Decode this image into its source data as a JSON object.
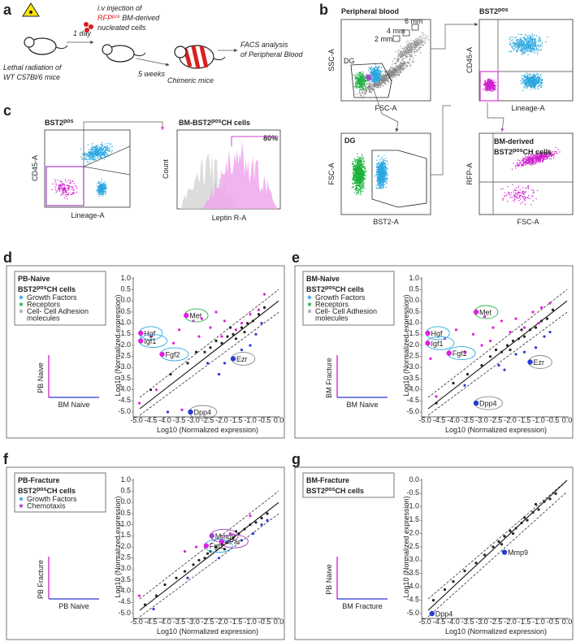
{
  "panels": {
    "a": {
      "letter": "a",
      "radiation_lines": [
        "Lethal radiation of",
        "WT C57Bl/6 mice"
      ],
      "step1": "1 day",
      "injection_line1": "i.v injection of",
      "injection_line2": {
        "pre": "RFP",
        "sup": "pos",
        "post": " BM-derived"
      },
      "injection_line3": "nucleated cells",
      "step2": "5 weeks",
      "chimeric": "Chimeric mice",
      "facs_lines": [
        "FACS analysis",
        "of Peripheral Blood"
      ]
    },
    "b": {
      "letter": "b",
      "pb_title": "Peripheral blood",
      "pb_y": "SSC-A",
      "pb_x": "FSC-A",
      "sizes": [
        "2 mm",
        "4 mm",
        "6 mm"
      ],
      "gate": "DG",
      "bst_title": {
        "pre": "BST2",
        "sup": "pos",
        "post": ""
      },
      "bst_y": "CD45-A",
      "bst_x": "Lineage-A",
      "dg_title": "DG",
      "dg_y": "FSC-A",
      "dg_x": "BST2-A",
      "bm_title1": "BM-derived",
      "bm_title2": {
        "pre": "BST2",
        "sup": "pos",
        "post": "CH cells"
      },
      "bm_y": "RFP-A",
      "bm_x": "FSC-A"
    },
    "c": {
      "letter": "c",
      "bst_title": {
        "pre": "BST2",
        "sup": "pos",
        "post": ""
      },
      "bst_y": "CD45-A",
      "bst_x": "Lineage-A",
      "hist_title": {
        "pre": "BM-BST2",
        "sup": "pos",
        "post": "CH cells"
      },
      "hist_y": "Count",
      "hist_x": "Leptin R-A",
      "percent": "80%"
    },
    "d": {
      "letter": "d",
      "legend": {
        "title": "PB-Naive",
        "subtitle": {
          "pre": "BST2",
          "sup": "pos",
          "post": "CH cells"
        },
        "items": [
          {
            "lines": [
              "Growth Factors"
            ],
            "color": "#29a9e1"
          },
          {
            "lines": [
              "Receptors"
            ],
            "color": "#2db34a"
          },
          {
            "lines": [
              "Cell- Cell Adhesion",
              "molecules"
            ],
            "color": "#aaaaaa"
          }
        ]
      },
      "icon_y": "PB Naive",
      "icon_x": "BM Naive",
      "x_axis_label": "Log10 (Normalized expression)",
      "y_axis_label": "Log10 (Normalized expression)",
      "xlim": [
        -5,
        0
      ],
      "ylim": [
        -5,
        1
      ],
      "xticks": [
        "-5.0",
        "-4.5",
        "-4.0",
        "-3.5",
        "-3.0",
        "-2.5",
        "-2.0",
        "-1.5",
        "-1.0",
        "-0.5",
        "0.0"
      ],
      "yticks": [
        "1.0",
        "0.5",
        "0.0",
        "-0.5",
        "-1.0",
        "-1.5",
        "-2.0",
        "-2.5",
        "-3.0",
        "-3.5",
        "-4.0",
        "-4.5",
        "-5.0"
      ],
      "series": [
        {
          "color": "#e020e0",
          "points": [
            [
              -4.9,
              -4.6
            ],
            [
              -4.5,
              -1.6
            ],
            [
              -3.7,
              -1.9
            ],
            [
              -3.5,
              -1.3
            ],
            [
              -3.0,
              -0.9
            ],
            [
              -2.7,
              -0.8
            ],
            [
              -2.4,
              -1.2
            ],
            [
              -2.2,
              -0.5
            ],
            [
              -1.9,
              -0.9
            ],
            [
              -1.5,
              -1.3
            ],
            [
              -1.3,
              -1.0
            ],
            [
              -1.0,
              -0.6
            ],
            [
              -0.7,
              -0.4
            ],
            [
              -0.5,
              0.3
            ],
            [
              -2.0,
              -1.6
            ],
            [
              -3.4,
              -4.9
            ],
            [
              -4.3,
              -4.0
            ],
            [
              -2.8,
              -1.6
            ]
          ]
        },
        {
          "color": "#222222",
          "points": [
            [
              -4.5,
              -4.0
            ],
            [
              -3.8,
              -3.3
            ],
            [
              -3.2,
              -2.8
            ],
            [
              -2.9,
              -2.3
            ],
            [
              -2.6,
              -2.3
            ],
            [
              -2.4,
              -2.1
            ],
            [
              -2.2,
              -1.8
            ],
            [
              -2.0,
              -1.9
            ],
            [
              -1.8,
              -1.6
            ],
            [
              -1.6,
              -1.5
            ],
            [
              -1.5,
              -1.7
            ],
            [
              -1.3,
              -1.2
            ],
            [
              -1.1,
              -1.0
            ],
            [
              -0.9,
              -0.9
            ],
            [
              -0.7,
              -0.6
            ],
            [
              -0.5,
              -0.3
            ],
            [
              -1.7,
              -1.2
            ],
            [
              -1.2,
              -1.4
            ]
          ]
        },
        {
          "color": "#2a3bd1",
          "points": [
            [
              -2.5,
              -2.8
            ],
            [
              -2.1,
              -3.3
            ],
            [
              -1.9,
              -2.8
            ],
            [
              -1.3,
              -2.2
            ],
            [
              -1.0,
              -2.0
            ],
            [
              -0.8,
              -1.5
            ],
            [
              -3.9,
              -5.0
            ],
            [
              -0.6,
              -1.0
            ]
          ]
        }
      ],
      "genes": [
        {
          "label": "Hgf",
          "x": -4.85,
          "y": -1.45,
          "color": "#e020e0",
          "ring": "#29a9e1"
        },
        {
          "label": "Igf1",
          "x": -4.85,
          "y": -1.8,
          "color": "#e020e0",
          "ring": "#29a9e1"
        },
        {
          "label": "Fgf2",
          "x": -4.1,
          "y": -2.4,
          "color": "#e020e0",
          "ring": "#29a9e1"
        },
        {
          "label": "Met",
          "x": -3.25,
          "y": -0.65,
          "color": "#e020e0",
          "ring": "#2db34a"
        },
        {
          "label": "Ezr",
          "x": -1.6,
          "y": -2.6,
          "color": "#2a3bd1",
          "ring": "#888888"
        },
        {
          "label": "Dpp4",
          "x": -3.1,
          "y": -5.0,
          "color": "#2a3bd1",
          "ring": "#888888"
        }
      ]
    },
    "e": {
      "letter": "e",
      "legend": {
        "title": "BM-Naive",
        "subtitle": {
          "pre": "BST2",
          "sup": "pos",
          "post": "CH cells"
        },
        "items": [
          {
            "lines": [
              "Growth Factors"
            ],
            "color": "#29a9e1"
          },
          {
            "lines": [
              "Receptors"
            ],
            "color": "#2db34a"
          },
          {
            "lines": [
              "Cell- Cell Adhesion",
              "molecules"
            ],
            "color": "#aaaaaa"
          }
        ]
      },
      "icon_y": "BM Fracture",
      "icon_x": "BM Naive",
      "x_axis_label": "Log10 (Normalized expression)",
      "y_axis_label": "Log10 (Normalized expression)",
      "xlim": [
        -5,
        0
      ],
      "ylim": [
        -5,
        1
      ],
      "xticks": [
        "-5.0",
        "-4.5",
        "-4.0",
        "-3.5",
        "-3.0",
        "-2.5",
        "-2.0",
        "-1.5",
        "-1.0",
        "-0.5",
        "0.0"
      ],
      "yticks": [
        "1.0",
        "0.5",
        "0.0",
        "-0.5",
        "-1.0",
        "-1.5",
        "-2.0",
        "-2.5",
        "-3.0",
        "-3.5",
        "-4.0",
        "-4.5",
        "-5.0"
      ],
      "series": [
        {
          "color": "#e020e0",
          "points": [
            [
              -4.8,
              -2.6
            ],
            [
              -4.3,
              -1.7
            ],
            [
              -3.9,
              -1.3
            ],
            [
              -3.6,
              -2.3
            ],
            [
              -3.3,
              -1.5
            ],
            [
              -2.9,
              -0.7
            ],
            [
              -2.6,
              -1.2
            ],
            [
              -2.3,
              -0.9
            ],
            [
              -2.0,
              -1.4
            ],
            [
              -1.8,
              -0.8
            ],
            [
              -1.5,
              -1.2
            ],
            [
              -1.2,
              -0.5
            ],
            [
              -0.9,
              -0.3
            ],
            [
              -0.6,
              -0.1
            ],
            [
              -2.7,
              -1.8
            ],
            [
              -1.0,
              -1.0
            ],
            [
              -4.6,
              -4.3
            ],
            [
              -3.0,
              -2.0
            ]
          ]
        },
        {
          "color": "#222222",
          "points": [
            [
              -4.6,
              -4.6
            ],
            [
              -4.0,
              -3.7
            ],
            [
              -3.5,
              -3.3
            ],
            [
              -3.0,
              -2.9
            ],
            [
              -2.7,
              -2.5
            ],
            [
              -2.5,
              -2.2
            ],
            [
              -2.3,
              -2.3
            ],
            [
              -2.1,
              -2.0
            ],
            [
              -1.9,
              -1.8
            ],
            [
              -1.7,
              -1.7
            ],
            [
              -1.5,
              -1.6
            ],
            [
              -1.3,
              -1.3
            ],
            [
              -1.1,
              -1.2
            ],
            [
              -0.9,
              -0.9
            ],
            [
              -0.7,
              -0.8
            ],
            [
              -0.5,
              -0.4
            ],
            [
              -1.6,
              -1.3
            ],
            [
              -2.0,
              -2.2
            ]
          ]
        },
        {
          "color": "#2a3bd1",
          "points": [
            [
              -2.4,
              -2.9
            ],
            [
              -2.2,
              -3.1
            ],
            [
              -1.8,
              -2.4
            ],
            [
              -1.5,
              -2.3
            ],
            [
              -1.1,
              -2.1
            ],
            [
              -0.8,
              -1.6
            ],
            [
              -0.6,
              -1.4
            ],
            [
              -3.6,
              -3.8
            ]
          ]
        }
      ],
      "genes": [
        {
          "label": "Hgf",
          "x": -4.9,
          "y": -1.45,
          "color": "#e020e0",
          "ring": "#29a9e1"
        },
        {
          "label": "Igf1",
          "x": -4.9,
          "y": -1.9,
          "color": "#e020e0",
          "ring": "#29a9e1"
        },
        {
          "label": "Fgf2",
          "x": -4.15,
          "y": -2.35,
          "color": "#e020e0",
          "ring": "#29a9e1"
        },
        {
          "label": "Met",
          "x": -3.2,
          "y": -0.5,
          "color": "#e020e0",
          "ring": "#2db34a"
        },
        {
          "label": "Ezr",
          "x": -1.3,
          "y": -2.75,
          "color": "#2a3bd1",
          "ring": "#888888"
        },
        {
          "label": "Dpp4",
          "x": -3.2,
          "y": -4.6,
          "color": "#2a3bd1",
          "ring": "#888888"
        }
      ]
    },
    "f": {
      "letter": "f",
      "legend": {
        "title": "PB-Fracture",
        "subtitle": {
          "pre": "BST2",
          "sup": "pos",
          "post": "CH cells"
        },
        "items": [
          {
            "lines": [
              "Growth Factors"
            ],
            "color": "#29a9e1"
          },
          {
            "lines": [
              "Chemotaxis"
            ],
            "color": "#a040c0"
          }
        ]
      },
      "icon_y": "PB Fracture",
      "icon_x": "PB Naive",
      "x_axis_label": "Log10 (Normalized expression)",
      "y_axis_label": "Log10 (Normalized expression)",
      "xlim": [
        -5,
        0
      ],
      "ylim": [
        -5,
        1
      ],
      "xticks": [
        "-5.0",
        "-4.5",
        "-4.0",
        "-3.5",
        "-3.0",
        "-2.5",
        "-2.0",
        "-1.5",
        "-1.0",
        "-0.5",
        "0.0"
      ],
      "yticks": [
        "1.0",
        "0.5",
        "0.0",
        "-0.5",
        "-1.0",
        "-1.5",
        "-2.0",
        "-2.5",
        "-3.0",
        "-3.5",
        "-4.0",
        "-4.5",
        "-5.0"
      ],
      "series": [
        {
          "color": "#e020e0",
          "points": [
            [
              -4.9,
              -4.2
            ],
            [
              -3.3,
              -2.2
            ],
            [
              -2.9,
              -2.0
            ],
            [
              -1.7,
              -1.4
            ],
            [
              -1.0,
              -0.6
            ]
          ]
        },
        {
          "color": "#222222",
          "points": [
            [
              -4.7,
              -4.6
            ],
            [
              -4.3,
              -4.2
            ],
            [
              -4.0,
              -3.7
            ],
            [
              -3.6,
              -3.4
            ],
            [
              -3.3,
              -3.1
            ],
            [
              -3.0,
              -2.8
            ],
            [
              -2.8,
              -2.6
            ],
            [
              -2.6,
              -2.5
            ],
            [
              -2.4,
              -2.2
            ],
            [
              -2.2,
              -2.0
            ],
            [
              -2.0,
              -1.9
            ],
            [
              -1.8,
              -1.8
            ],
            [
              -1.6,
              -1.6
            ],
            [
              -1.4,
              -1.4
            ],
            [
              -1.2,
              -1.2
            ],
            [
              -1.0,
              -1.0
            ],
            [
              -0.8,
              -0.9
            ],
            [
              -0.6,
              -0.7
            ],
            [
              -0.4,
              -0.5
            ],
            [
              -1.9,
              -2.1
            ],
            [
              -1.5,
              -1.3
            ],
            [
              -2.5,
              -2.3
            ]
          ]
        },
        {
          "color": "#2a3bd1",
          "points": [
            [
              -4.4,
              -4.8
            ],
            [
              -3.2,
              -3.4
            ],
            [
              -2.1,
              -2.5
            ],
            [
              -1.3,
              -1.7
            ],
            [
              -0.9,
              -1.4
            ],
            [
              -0.6,
              -1.0
            ],
            [
              -0.4,
              -0.8
            ]
          ]
        }
      ],
      "genes": [
        {
          "label": "Mmp9",
          "x": -2.35,
          "y": -1.5,
          "color": "#a040c0",
          "ring": "#a040c0"
        },
        {
          "label": "uPar",
          "x": -2.0,
          "y": -1.75,
          "color": "#e020e0",
          "ring": "#a040c0"
        },
        {
          "label": "Fgf2",
          "x": -2.55,
          "y": -1.95,
          "color": "#e020e0",
          "ring": "#29a9e1"
        }
      ]
    },
    "g": {
      "letter": "g",
      "legend": {
        "title": "BM-Fracture",
        "subtitle": {
          "pre": "BST2",
          "sup": "pos",
          "post": "CH cells"
        },
        "items": []
      },
      "icon_y": "PB Naive",
      "icon_x": "BM Fracture",
      "x_axis_label": "Log10 (Normalized expression)",
      "y_axis_label": "Log10 (Normalized expression)",
      "xlim": [
        -5,
        0
      ],
      "ylim": [
        -5,
        0
      ],
      "xticks": [
        "-5.0",
        "-4.5",
        "-4.0",
        "-3.5",
        "-3.0",
        "-2.5",
        "-2.0",
        "-1.5",
        "-1.0",
        "-0.5",
        "0.0"
      ],
      "yticks": [
        "0.0",
        "-0.5",
        "-1.0",
        "-1.5",
        "-2.0",
        "-2.5",
        "-3.0",
        "-3.5",
        "-4.0",
        "-4.5",
        "-5.0"
      ],
      "series": [
        {
          "color": "#222222",
          "points": [
            [
              -4.7,
              -4.5
            ],
            [
              -4.3,
              -4.1
            ],
            [
              -4.0,
              -3.8
            ],
            [
              -3.6,
              -3.4
            ],
            [
              -3.2,
              -3.1
            ],
            [
              -2.9,
              -2.8
            ],
            [
              -2.6,
              -2.5
            ],
            [
              -2.4,
              -2.3
            ],
            [
              -2.2,
              -2.1
            ],
            [
              -2.0,
              -1.9
            ],
            [
              -1.8,
              -1.8
            ],
            [
              -1.6,
              -1.6
            ],
            [
              -1.4,
              -1.5
            ],
            [
              -1.2,
              -1.2
            ],
            [
              -1.0,
              -1.1
            ],
            [
              -0.8,
              -0.8
            ],
            [
              -0.6,
              -0.7
            ],
            [
              -0.4,
              -0.5
            ],
            [
              -1.9,
              -2.0
            ],
            [
              -1.5,
              -1.4
            ],
            [
              -2.3,
              -2.4
            ],
            [
              -1.1,
              -0.9
            ]
          ]
        }
      ],
      "genes": [
        {
          "label": "Mmp9",
          "x": -2.2,
          "y": -2.7,
          "color": "#2a3bd1"
        },
        {
          "label": "Dpp4",
          "x": -4.75,
          "y": -5.0,
          "color": "#2a3bd1"
        }
      ]
    }
  }
}
